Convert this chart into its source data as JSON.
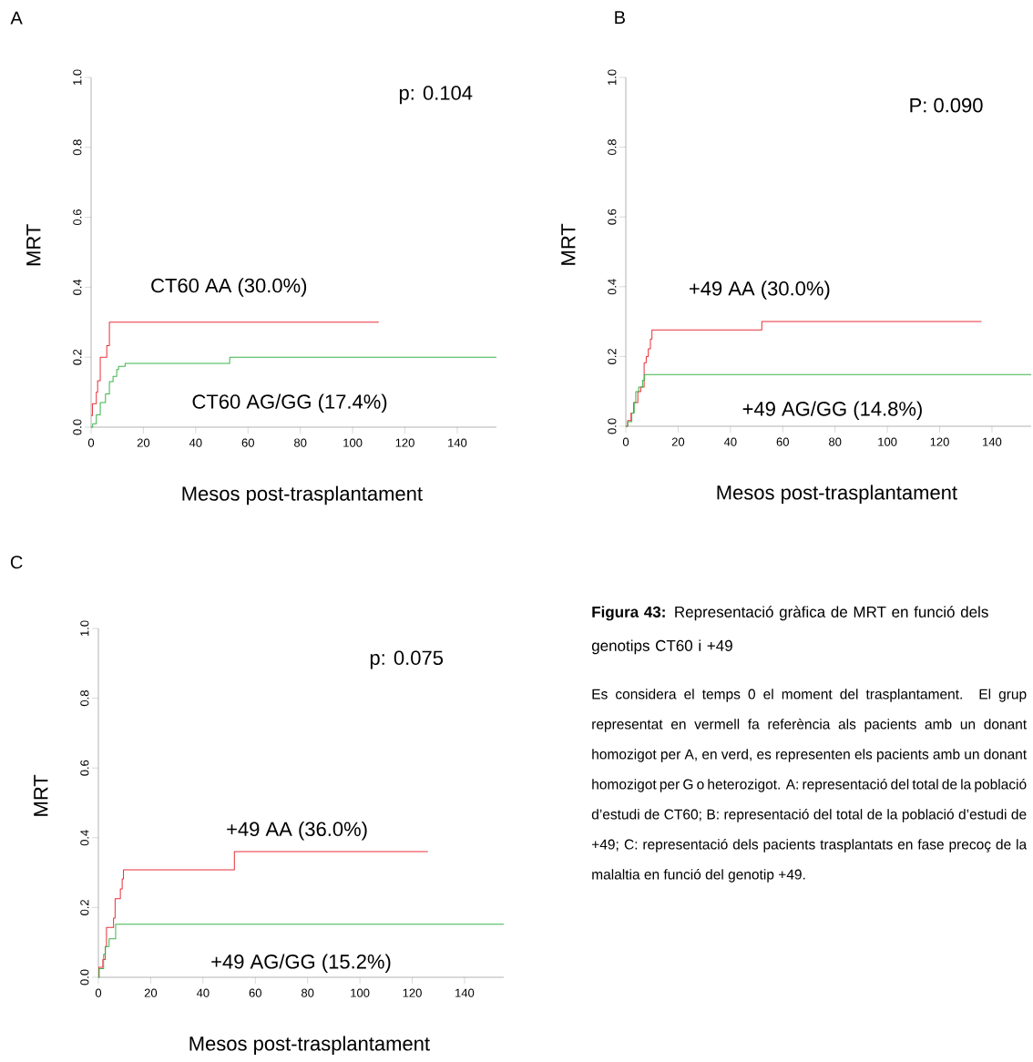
{
  "chart_data": [
    {
      "type": "step",
      "title": "A",
      "xlabel": "Mesos post-trasplantament",
      "ylabel": "MRT",
      "xlim": [
        0,
        155
      ],
      "ylim": [
        0,
        1.0
      ],
      "xticks": [
        0,
        20,
        40,
        60,
        80,
        100,
        120,
        140
      ],
      "yticks": [
        {
          "value": 0,
          "label": "0.0"
        },
        {
          "value": 0.2,
          "label": "0.2"
        },
        {
          "value": 0.4,
          "label": "0.4"
        },
        {
          "value": 0.6,
          "label": "0.6"
        },
        {
          "value": 0.8,
          "label": "0.8"
        },
        {
          "value": 1.0,
          "label": "1.0"
        }
      ],
      "annotations": [
        "p: 0.104"
      ],
      "series": [
        {
          "name": "CT60 AA (30.0%)",
          "color": "#e8303a",
          "x": [
            0,
            0.5,
            2,
            2.5,
            3.5,
            6,
            7,
            110
          ],
          "values": [
            0.033,
            0.067,
            0.1,
            0.133,
            0.2,
            0.233,
            0.3,
            0.3
          ]
        },
        {
          "name": "CT60 AG/GG (17.4%)",
          "color": "#3ab54a",
          "x": [
            0,
            0.6,
            2,
            3.5,
            5.5,
            7,
            8.4,
            9.8,
            10.5,
            13,
            53,
            155
          ],
          "values": [
            0,
            0.01,
            0.035,
            0.07,
            0.095,
            0.13,
            0.145,
            0.165,
            0.174,
            0.182,
            0.2,
            0.2
          ]
        }
      ]
    },
    {
      "type": "step",
      "title": "B",
      "xlabel": "Mesos post-trasplantament",
      "ylabel": "MRT",
      "xlim": [
        0,
        155
      ],
      "ylim": [
        0,
        1.0
      ],
      "xticks": [
        0,
        20,
        40,
        60,
        80,
        100,
        120,
        140
      ],
      "yticks": [
        {
          "value": 0,
          "label": "0.0"
        },
        {
          "value": 0.2,
          "label": "0.2"
        },
        {
          "value": 0.4,
          "label": "0.4"
        },
        {
          "value": 0.6,
          "label": "0.6"
        },
        {
          "value": 0.8,
          "label": "0.8"
        },
        {
          "value": 1.0,
          "label": "1.0"
        }
      ],
      "annotations": [
        "P: 0.090"
      ],
      "series": [
        {
          "name": "+49 AA (30.0%)",
          "color": "#e8303a",
          "x": [
            0,
            0.7,
            2,
            3,
            4.6,
            5.7,
            6.6,
            7,
            7.8,
            8.6,
            9.4,
            10,
            52,
            136
          ],
          "values": [
            0,
            0.016,
            0.038,
            0.068,
            0.099,
            0.112,
            null,
            0.182,
            0.2,
            0.222,
            0.25,
            0.276,
            0.3,
            0.3
          ]
        },
        {
          "name": "+49 AG/GG (14.8%)",
          "color": "#3ab54a",
          "x": [
            0,
            0.7,
            2.3,
            3.2,
            3.8,
            4.9,
            6.4,
            7.2,
            155
          ],
          "values": [
            0,
            0.013,
            0.038,
            0.068,
            0.099,
            0.112,
            0.132,
            0.148,
            0.148
          ]
        }
      ]
    },
    {
      "type": "step",
      "title": "C",
      "xlabel": "Mesos post-trasplantament",
      "ylabel": "MRT",
      "xlim": [
        0,
        155
      ],
      "ylim": [
        0,
        1.0
      ],
      "xticks": [
        0,
        20,
        40,
        60,
        80,
        100,
        120,
        140
      ],
      "yticks": [
        {
          "value": 0,
          "label": "0.0"
        },
        {
          "value": 0.2,
          "label": "0.2"
        },
        {
          "value": 0.4,
          "label": "0.4"
        },
        {
          "value": 0.6,
          "label": "0.6"
        },
        {
          "value": 0.8,
          "label": "0.8"
        },
        {
          "value": 1.0,
          "label": "1.0"
        }
      ],
      "annotations": [
        "p: 0.075"
      ],
      "series": [
        {
          "name": "+49 AA (36.0%)",
          "color": "#e8303a",
          "x": [
            0,
            0.2,
            1.7,
            2.6,
            3.1,
            5.8,
            6.4,
            8.4,
            9.1,
            9.6,
            52,
            126
          ],
          "values": [
            0,
            0.029,
            0.051,
            0.088,
            0.143,
            0.17,
            0.225,
            0.253,
            0.282,
            0.308,
            0.36,
            0.36
          ]
        },
        {
          "name": "+49 AG/GG (15.2%)",
          "color": "#3ab54a",
          "x": [
            0,
            0.3,
            2,
            2.7,
            4.1,
            6.6,
            155
          ],
          "values": [
            0,
            0.025,
            0.066,
            0.088,
            0.11,
            0.152,
            0.152
          ]
        }
      ]
    },
    {
      "type": "other",
      "title": "**Figura 43:**  Representació gràfica de MRT en funció dels genotips CT60 i +49",
      "annotations": [
        "Es considera el temps 0 el moment del trasplantament. El grup representat en vermell fa referència als pacients amb un donant homozigot per A, en verd, es representen els pacients amb un donant homozigot per G o heterozigot. A: representació del total de la població d’estudi de CT60; B: representació del total de la població d’estudi de +49; C: representació dels pacients trasplantats en fase precoç de la malaltia en funció del genotip +49."
      ]
    }
  ]
}
